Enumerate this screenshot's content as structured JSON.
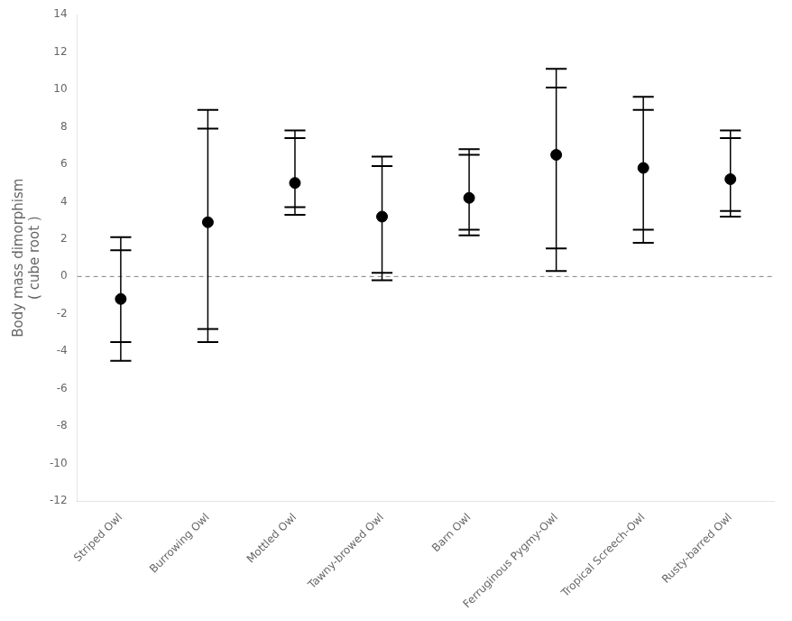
{
  "chart_data": {
    "type": "errorbar",
    "ylabel": "Body mass dimorphism\n( cube root )",
    "categories": [
      "Striped Owl",
      "Burrowing Owl",
      "Mottled Owl",
      "Tawny-browed Owl",
      "Barn Owl",
      "Ferruginous Pygmy-Owl",
      "Tropical Screech-Owl",
      "Rusty-barred Owl"
    ],
    "values": [
      -1.2,
      2.9,
      5.0,
      3.2,
      4.2,
      6.5,
      5.8,
      5.2
    ],
    "lower_ci": [
      -4.5,
      -3.5,
      3.3,
      -0.2,
      2.2,
      0.3,
      1.8,
      3.2
    ],
    "upper_ci": [
      2.1,
      8.9,
      7.8,
      6.4,
      6.8,
      11.1,
      9.6,
      7.8
    ],
    "inner_lower": [
      -3.5,
      -2.8,
      3.7,
      0.2,
      2.5,
      1.5,
      2.5,
      3.5
    ],
    "inner_upper": [
      1.4,
      7.9,
      7.4,
      5.9,
      6.5,
      10.1,
      8.9,
      7.4
    ],
    "color": "#000000",
    "hline": {
      "value": 0,
      "color": "gray",
      "line_style": "dashed"
    },
    "ylim": [
      -12,
      14
    ],
    "yticks": [
      -12,
      -10,
      -8,
      -6,
      -4,
      -2,
      0,
      2,
      4,
      6,
      8,
      10,
      12,
      14
    ],
    "grid": false
  }
}
